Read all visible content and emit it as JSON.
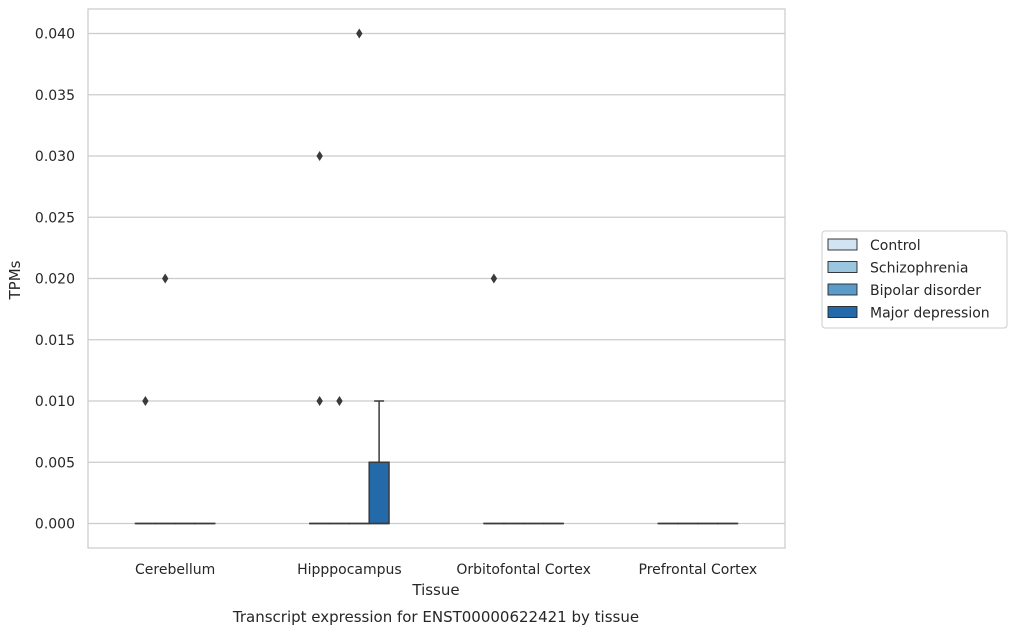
{
  "chart_data": {
    "type": "box",
    "title": "",
    "caption": "Transcript expression for ENST00000622421 by tissue",
    "xlabel": "Tissue",
    "ylabel": "TPMs",
    "ylim": [
      -0.002,
      0.042
    ],
    "yticks": [
      "0.000",
      "0.005",
      "0.010",
      "0.015",
      "0.020",
      "0.025",
      "0.030",
      "0.035",
      "0.040"
    ],
    "ytick_values": [
      0,
      0.005,
      0.01,
      0.015,
      0.02,
      0.025,
      0.03,
      0.035,
      0.04
    ],
    "grid": "horizontal",
    "legend_position": "right",
    "categories": [
      "Cerebellum",
      "Hipppocampus",
      "Orbitofontal Cortex",
      "Prefrontal Cortex"
    ],
    "series": [
      {
        "name": "Control",
        "color": "#d2e3f3",
        "boxes": [
          {
            "q1": 0,
            "median": 0,
            "q3": 0,
            "whisker_low": 0,
            "whisker_high": 0,
            "outliers": [
              0.01
            ]
          },
          {
            "q1": 0,
            "median": 0,
            "q3": 0,
            "whisker_low": 0,
            "whisker_high": 0,
            "outliers": [
              0.03,
              0.01
            ]
          },
          {
            "q1": 0,
            "median": 0,
            "q3": 0,
            "whisker_low": 0,
            "whisker_high": 0,
            "outliers": [
              0.02
            ]
          },
          {
            "q1": 0,
            "median": 0,
            "q3": 0,
            "whisker_low": 0,
            "whisker_high": 0,
            "outliers": []
          }
        ]
      },
      {
        "name": "Schizophrenia",
        "color": "#9ac6e0",
        "boxes": [
          {
            "q1": 0,
            "median": 0,
            "q3": 0,
            "whisker_low": 0,
            "whisker_high": 0,
            "outliers": [
              0.02
            ]
          },
          {
            "q1": 0,
            "median": 0,
            "q3": 0,
            "whisker_low": 0,
            "whisker_high": 0,
            "outliers": [
              0.01
            ]
          },
          {
            "q1": 0,
            "median": 0,
            "q3": 0,
            "whisker_low": 0,
            "whisker_high": 0,
            "outliers": []
          },
          {
            "q1": 0,
            "median": 0,
            "q3": 0,
            "whisker_low": 0,
            "whisker_high": 0,
            "outliers": []
          }
        ]
      },
      {
        "name": "Bipolar disorder",
        "color": "#5b9bc9",
        "boxes": [
          {
            "q1": 0,
            "median": 0,
            "q3": 0,
            "whisker_low": 0,
            "whisker_high": 0,
            "outliers": []
          },
          {
            "q1": 0,
            "median": 0,
            "q3": 0,
            "whisker_low": 0,
            "whisker_high": 0,
            "outliers": [
              0.04
            ]
          },
          {
            "q1": 0,
            "median": 0,
            "q3": 0,
            "whisker_low": 0,
            "whisker_high": 0,
            "outliers": []
          },
          {
            "q1": 0,
            "median": 0,
            "q3": 0,
            "whisker_low": 0,
            "whisker_high": 0,
            "outliers": []
          }
        ]
      },
      {
        "name": "Major depression",
        "color": "#2469a9",
        "boxes": [
          {
            "q1": 0,
            "median": 0,
            "q3": 0,
            "whisker_low": 0,
            "whisker_high": 0,
            "outliers": []
          },
          {
            "q1": 0,
            "median": 0,
            "q3": 0.005,
            "whisker_low": 0,
            "whisker_high": 0.01,
            "outliers": []
          },
          {
            "q1": 0,
            "median": 0,
            "q3": 0,
            "whisker_low": 0,
            "whisker_high": 0,
            "outliers": []
          },
          {
            "q1": 0,
            "median": 0,
            "q3": 0,
            "whisker_low": 0,
            "whisker_high": 0,
            "outliers": []
          }
        ]
      }
    ]
  }
}
